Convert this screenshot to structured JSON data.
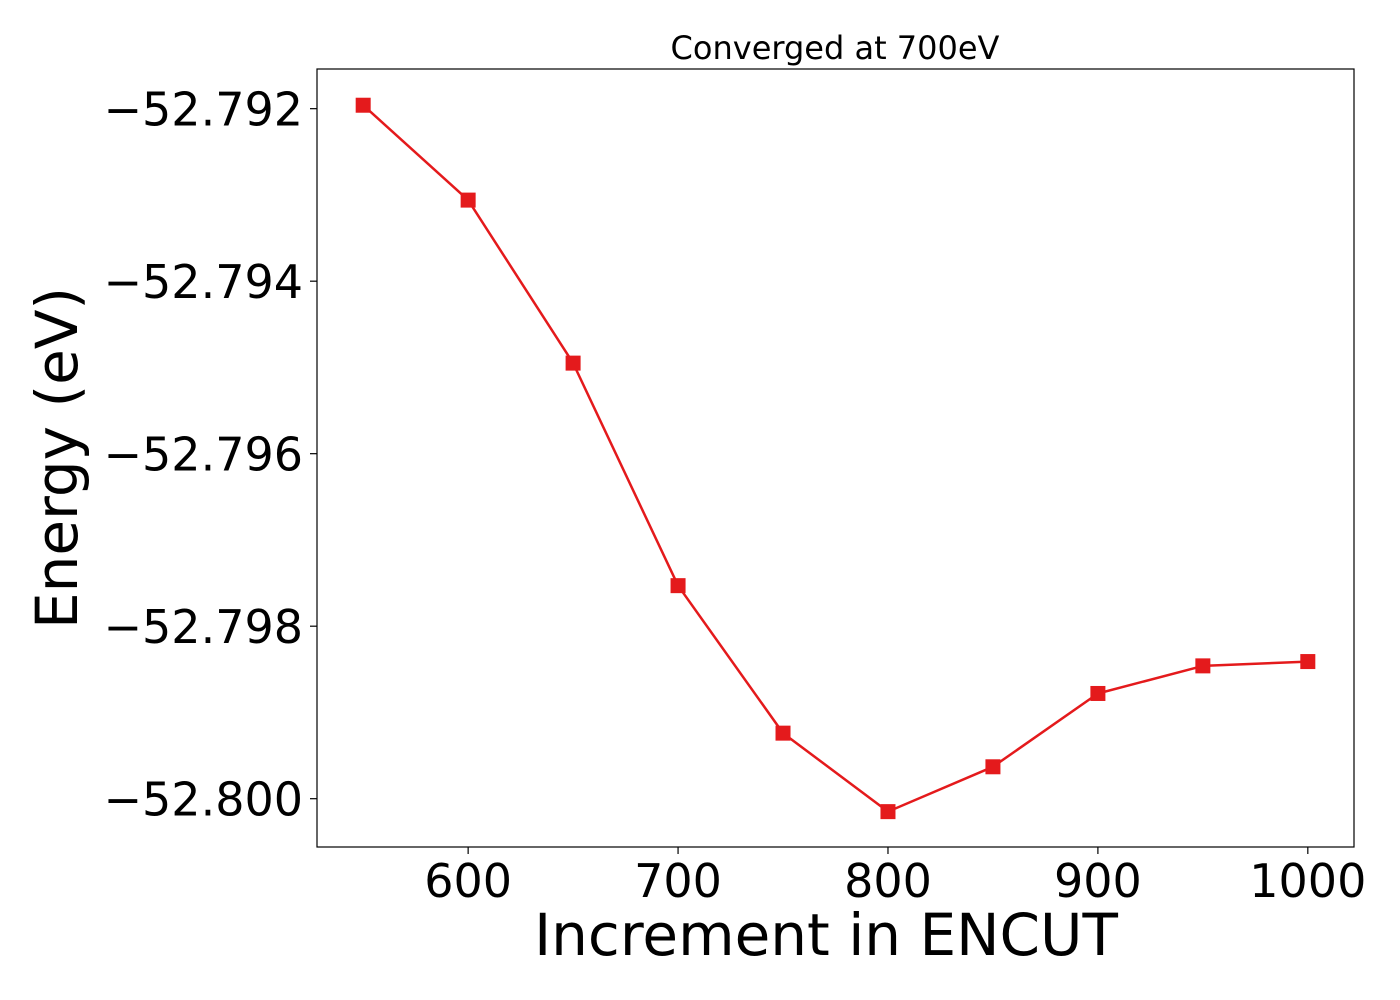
{
  "chart_data": {
    "type": "line",
    "title": "Converged at 700eV",
    "xlabel": "Increment in ENCUT",
    "ylabel": "Energy (eV)",
    "x": [
      550,
      600,
      650,
      700,
      750,
      800,
      850,
      900,
      950,
      1000
    ],
    "series": [
      {
        "values": [
          -52.79196,
          -52.79306,
          -52.79495,
          -52.79753,
          -52.79924,
          -52.80015,
          -52.79963,
          -52.79878,
          -52.79846,
          -52.79841
        ],
        "color": "#e41a1c",
        "marker": "square"
      }
    ],
    "xticks": [
      600,
      700,
      800,
      900,
      1000
    ],
    "xtick_labels": [
      "600",
      "700",
      "800",
      "900",
      "1000"
    ],
    "yticks": [
      -52.792,
      -52.794,
      -52.796,
      -52.798,
      -52.8
    ],
    "ytick_labels": [
      "−52.792",
      "−52.794",
      "−52.796",
      "−52.798",
      "−52.800"
    ],
    "xlim": [
      528,
      1022
    ],
    "ylim": [
      -52.80056,
      -52.79154
    ],
    "grid": false,
    "legend": false
  }
}
